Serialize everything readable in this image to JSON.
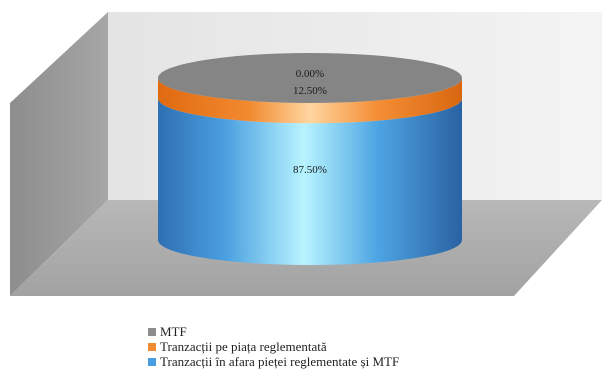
{
  "chart_data": {
    "type": "pie",
    "title": "",
    "series": [
      {
        "name": "MTF",
        "value": 0.0,
        "label": "0.00%",
        "color": "#8c8c8c"
      },
      {
        "name": "Tranzacții pe piața reglementată",
        "value": 12.5,
        "label": "12.50%",
        "color": "#f28a30"
      },
      {
        "name": "Tranzacții în afara pieței reglementate și MTF",
        "value": 87.5,
        "label": "87.50%",
        "color": "#4a9fe0"
      }
    ],
    "legend_position": "bottom"
  }
}
